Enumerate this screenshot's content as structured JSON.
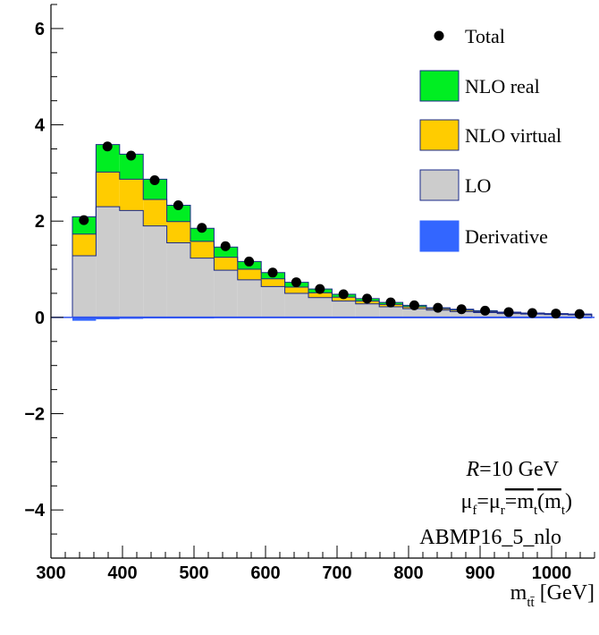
{
  "chart_data": {
    "type": "bar",
    "stacked": true,
    "bin_edges": [
      330,
      363,
      396,
      429,
      462,
      495,
      528,
      561,
      594,
      627,
      660,
      693,
      726,
      759,
      792,
      825,
      858,
      891,
      924,
      957,
      990,
      1023,
      1056
    ],
    "series": [
      {
        "name": "Derivative",
        "color": "#3366ff",
        "values": [
          -0.07,
          -0.04,
          -0.03,
          -0.02,
          -0.01,
          -0.01,
          0,
          0,
          0,
          0,
          0,
          0,
          0,
          0,
          0,
          0,
          0,
          0,
          0,
          0,
          0,
          0
        ]
      },
      {
        "name": "LO",
        "color": "#cccccc",
        "values": [
          1.28,
          2.3,
          2.22,
          1.9,
          1.55,
          1.23,
          0.98,
          0.78,
          0.64,
          0.5,
          0.41,
          0.34,
          0.28,
          0.22,
          0.18,
          0.15,
          0.12,
          0.1,
          0.08,
          0.07,
          0.06,
          0.05
        ]
      },
      {
        "name": "NLO virtual",
        "color": "#ffcc00",
        "values": [
          0.45,
          0.72,
          0.65,
          0.55,
          0.44,
          0.35,
          0.27,
          0.22,
          0.16,
          0.13,
          0.1,
          0.08,
          0.06,
          0.05,
          0.04,
          0.03,
          0.03,
          0.02,
          0.02,
          0.01,
          0.01,
          0.01
        ]
      },
      {
        "name": "NLO real",
        "color": "#00ee22",
        "values": [
          0.36,
          0.57,
          0.52,
          0.42,
          0.34,
          0.27,
          0.21,
          0.16,
          0.13,
          0.1,
          0.08,
          0.06,
          0.05,
          0.04,
          0.03,
          0.02,
          0.02,
          0.02,
          0.01,
          0.01,
          0.01,
          0.01
        ]
      }
    ],
    "total": {
      "name": "Total",
      "x": [
        346,
        379,
        412,
        445,
        478,
        511,
        544,
        577,
        610,
        643,
        676,
        709,
        742,
        775,
        808,
        841,
        874,
        907,
        940,
        973,
        1006,
        1039
      ],
      "values": [
        2.02,
        3.55,
        3.36,
        2.85,
        2.33,
        1.86,
        1.48,
        1.16,
        0.93,
        0.73,
        0.59,
        0.48,
        0.39,
        0.31,
        0.25,
        0.2,
        0.17,
        0.14,
        0.11,
        0.09,
        0.08,
        0.07
      ]
    },
    "xlim": [
      300,
      1060
    ],
    "ylim": [
      -5,
      6.5
    ],
    "xticks": [
      300,
      400,
      500,
      600,
      700,
      800,
      900,
      1000
    ],
    "yticks": [
      -4,
      -2,
      0,
      2,
      4,
      6
    ],
    "xlabel": "m",
    "xlabel_sub": "tt̄",
    "xlabel_unit": "[GeV]",
    "legend_placement": "top-right",
    "legend_order": [
      "Total",
      "NLO real",
      "NLO virtual",
      "LO",
      "Derivative"
    ]
  },
  "annotations": {
    "radius_var": "R",
    "radius_rest": "=10 GeV",
    "mu_f": "μ",
    "mu_f_sub": "f",
    "mu_r": "=μ",
    "mu_r_sub": "r",
    "mt_rest": "=m",
    "mt_sub": "t",
    "mt_paren": "(m",
    "mt_paren_sub": "t",
    "mt_close": ")",
    "pdf": "ABMP16_5_nlo"
  }
}
